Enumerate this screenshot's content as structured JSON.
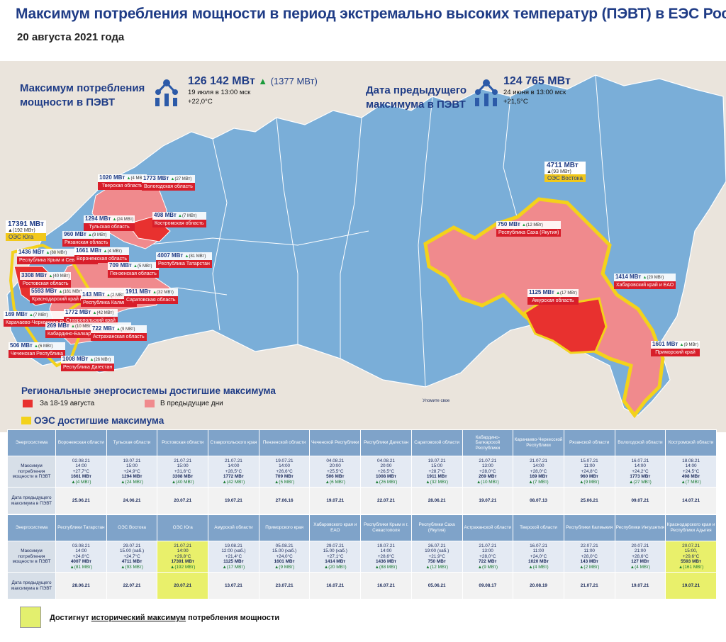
{
  "header": {
    "title": "Максимум потребления мощности в период экстремально высоких температур (ПЭВТ) в ЕЭС России",
    "date": "20 августа 2021 года"
  },
  "kpi": {
    "current": {
      "title_l1": "Максимум потребления",
      "title_l2": "мощности в ПЭВТ",
      "value": "126 142 МВт",
      "delta": "(1377 МВт)",
      "when": "19 июля в 13:00 мск",
      "temp": "+22,0°С"
    },
    "previous": {
      "title_l1": "Дата предыдущего",
      "title_l2": "максимума в ПЭВТ",
      "value": "124 765 МВт",
      "when": "24 июня в 13:00 мск",
      "temp": "+21,5°С"
    }
  },
  "map_labels": [
    {
      "v": "1020 МВт",
      "d": "(4 МВт)",
      "n": "Тверская область"
    },
    {
      "v": "1773 МВт",
      "d": "(27 МВт)",
      "n": "Вологодская область"
    },
    {
      "v": "1294 МВт",
      "d": "(24 МВт)",
      "n": "Тульская область"
    },
    {
      "v": "498 МВт",
      "d": "(7 МВт)",
      "n": "Костромская область"
    },
    {
      "v": "960 МВт",
      "d": "(9 МВт)",
      "n": "Рязанская область"
    },
    {
      "v": "1436 МВт",
      "d": "(88 МВт)",
      "n": "Республика Крым и Севастополь"
    },
    {
      "v": "1661 МВт",
      "d": "(4 МВт)",
      "n": "Воронежская область"
    },
    {
      "v": "709 МВт",
      "d": "(5 МВт)",
      "n": "Пензенская область"
    },
    {
      "v": "4007 МВт",
      "d": "(81 МВт)",
      "n": "Республика Татарстан"
    },
    {
      "v": "3308 МВт",
      "d": "(40 МВт)",
      "n": "Ростовская область"
    },
    {
      "v": "5593 МВт",
      "d": "(161 МВт)",
      "n": "Краснодарский край и Республика Адыгея"
    },
    {
      "v": "143 МВт",
      "d": "(2 МВт)",
      "n": "Республика Калмыкия"
    },
    {
      "v": "1911 МВт",
      "d": "(32 МВт)",
      "n": "Саратовская область"
    },
    {
      "v": "169 МВт",
      "d": "(7 МВт)",
      "n": "Карачаево-Черкесская Республика"
    },
    {
      "v": "1772 МВт",
      "d": "(42 МВт)",
      "n": "Ставропольский край"
    },
    {
      "v": "269 МВт",
      "d": "(10 МВт)",
      "n": "Кабардино-Балкарская Республика"
    },
    {
      "v": "722 МВт",
      "d": "(9 МВт)",
      "n": "Астраханская область"
    },
    {
      "v": "506 МВт",
      "d": "(6 МВт)",
      "n": "Чеченская Республика"
    },
    {
      "v": "1008 МВт",
      "d": "(26 МВт)",
      "n": "Республика Дагестан"
    },
    {
      "v": "750 МВт",
      "d": "(12 МВт)",
      "n": "Республика Саха (Якутия)"
    },
    {
      "v": "1125 МВт",
      "d": "(17 МВт)",
      "n": "Амурская область"
    },
    {
      "v": "1414 МВт",
      "d": "(20 МВт)",
      "n": "Хабаровский край и ЕАО"
    },
    {
      "v": "1601 МВт",
      "d": "(9 МВт)",
      "n": "Приморский край"
    }
  ],
  "oes_labels": [
    {
      "v": "17391 МВт",
      "d": "(192 МВт)",
      "n": "ОЭС Юга"
    },
    {
      "v": "4711 МВт",
      "d": "(93 МВт)",
      "n": "ОЭС Востока"
    }
  ],
  "map_note": "Уломите свое",
  "legend": {
    "heading": "Региональные энергосистемы достигшие  максимума",
    "recent": "За 18-19 августа",
    "previous": "В предыдущие дни",
    "oes_heading": "ОЭС достигшие максимума",
    "colors": {
      "recent": "#e8312f",
      "previous": "#f08a8d",
      "oes_border": "#f3d21b",
      "map_blue": "#7aaed8",
      "highlight": "#e3ef6e"
    }
  },
  "table": {
    "row_headers": {
      "system": "Энергосистема",
      "max": "Максимум потребления мощности в ПЭВТ",
      "prev": "Дата предыдущего максимума в ПЭВТ"
    },
    "block1": [
      {
        "name": "Воронежская области",
        "max": [
          "02.08.21",
          "14:00",
          "+27,7°С",
          "1661 МВт",
          "▲(4 МВт)"
        ],
        "prev": "25.06.21"
      },
      {
        "name": "Тульская области",
        "max": [
          "19.07.21",
          "15:00",
          "+24,9°С",
          "1294 МВт",
          "▲(24 МВт)"
        ],
        "prev": "24.06.21"
      },
      {
        "name": "Ростовская области",
        "max": [
          "21.07.21",
          "15:00",
          "+31,6°С",
          "3308 МВт",
          "▲(40 МВт)"
        ],
        "prev": "20.07.21"
      },
      {
        "name": "Ставропольского края",
        "max": [
          "21.07.21",
          "14:00",
          "+28,5°С",
          "1772 МВт",
          "▲(42 МВт)"
        ],
        "prev": "19.07.21"
      },
      {
        "name": "Пензенской области",
        "max": [
          "19.07.21",
          "14:00",
          "+26,6°С",
          "709 МВт",
          "▲(5 МВт)"
        ],
        "prev": "27.06.16"
      },
      {
        "name": "Чеченской Республики",
        "max": [
          "04.08.21",
          "20:00",
          "+25,5°С",
          "506 МВт",
          "▲(6 МВт)"
        ],
        "prev": "19.07.21"
      },
      {
        "name": "Республики Дагестан",
        "max": [
          "04.08.21",
          "20:00",
          "+26,5°С",
          "1008 МВт",
          "▲(26 МВт)"
        ],
        "prev": "22.07.21"
      },
      {
        "name": "Саратовской области",
        "max": [
          "19.07.21",
          "15:00",
          "+28,7°С",
          "1911 МВт",
          "▲(32 МВт)"
        ],
        "prev": "28.06.21"
      },
      {
        "name": "Кабардино-Балкарской Республики",
        "max": [
          "21.07.21",
          "13:00",
          "+28,0°С",
          "269 МВт",
          "▲(10 МВт)"
        ],
        "prev": "19.07.21"
      },
      {
        "name": "Карачаево-Черкесской Республики",
        "max": [
          "21.07.21",
          "14:00",
          "+28,0°С",
          "169 МВт",
          "▲(7 МВт)"
        ],
        "prev": "08.07.13"
      },
      {
        "name": "Рязанской области",
        "max": [
          "15.07.21",
          "11:00",
          "+24,8°С",
          "960 МВт",
          "▲(9 МВт)"
        ],
        "prev": "25.06.21"
      },
      {
        "name": "Вологодской области",
        "max": [
          "16.07.21",
          "14:00",
          "+24,2°С",
          "1773 МВт",
          "▲(27 МВт)"
        ],
        "prev": "09.07.21"
      },
      {
        "name": "Костромской области",
        "max": [
          "18.08.21",
          "14:00",
          "+24,5°С",
          "498 МВт",
          "▲(7 МВт)"
        ],
        "prev": "14.07.21"
      }
    ],
    "block2": [
      {
        "name": "Республики Татарстан",
        "max": [
          "03.08.21",
          "14:00",
          "+24,6°С",
          "4007 МВт",
          "▲(81 МВт)"
        ],
        "prev": "28.06.21"
      },
      {
        "name": "ОЭС Востока",
        "max": [
          "29.07.21",
          "15.00 (хаб.)",
          "+24,7°С",
          "4711 МВт",
          "▲(93 МВт)"
        ],
        "prev": "22.07.21"
      },
      {
        "name": "ОЭС Юга",
        "max": [
          "21.07.21",
          "14:00",
          "+29,8°С",
          "17391 МВт",
          "▲(192 МВт)"
        ],
        "prev": "20.07.21",
        "hl": true
      },
      {
        "name": "Амурской области",
        "max": [
          "19.08.21",
          "12:00 (хаб.)",
          "+21,4°С",
          "1125 МВт",
          "▲(17 МВт)"
        ],
        "prev": "13.07.21"
      },
      {
        "name": "Приморского края",
        "max": [
          "05.08.21",
          "15.00 (хаб.)",
          "+24,0°С",
          "1601 МВт",
          "▲(9 МВт)"
        ],
        "prev": "23.07.21"
      },
      {
        "name": "Хабаровского края и ЕАО",
        "max": [
          "29.07.21",
          "15.00 (хаб.)",
          "+27,1°С",
          "1414 МВт",
          "▲(20 МВт)"
        ],
        "prev": "16.07.21"
      },
      {
        "name": "Республики Крым и г. Севастополя",
        "max": [
          "19.07.21",
          "14:00",
          "+28,6°С",
          "1436 МВт",
          "▲(88 МВт)"
        ],
        "prev": "16.07.21"
      },
      {
        "name": "Республики Саха (Якутия)",
        "max": [
          "26.07.21",
          "19:00 (хаб.)",
          "+21,9°С",
          "750 МВт",
          "▲(12 МВт)"
        ],
        "prev": "05.06.21"
      },
      {
        "name": "Астраханской области",
        "max": [
          "21.07.21",
          "13:00",
          "+28,0°С",
          "722 МВт",
          "▲(9 МВт)"
        ],
        "prev": "09.08.17"
      },
      {
        "name": "Тверской области",
        "max": [
          "16.07.21",
          "11:00",
          "+24,0°С",
          "1020 МВт",
          "▲(4 МВт)"
        ],
        "prev": "20.08.19"
      },
      {
        "name": "Республики Калмыкия",
        "max": [
          "22.07.21",
          "11:00",
          "+28,0°С",
          "143 МВт",
          "▲(2 МВт)"
        ],
        "prev": "21.07.21"
      },
      {
        "name": "Республики Ингушетия",
        "max": [
          "20.07.21",
          "21:00",
          "+28,6°С",
          "127 МВт",
          "▲(4 МВт)"
        ],
        "prev": "19.07.21"
      },
      {
        "name": "Краснодарского края и Республики Адыгея",
        "max": [
          "20.07.21",
          "15:00,",
          "+29,6°С",
          "5593 МВт",
          "▲(161 МВт)"
        ],
        "prev": "19.07.21",
        "hl": true
      }
    ]
  },
  "note": {
    "pre": "Достигнут ",
    "u": "исторический максимум",
    "post": " потребления мощности"
  }
}
